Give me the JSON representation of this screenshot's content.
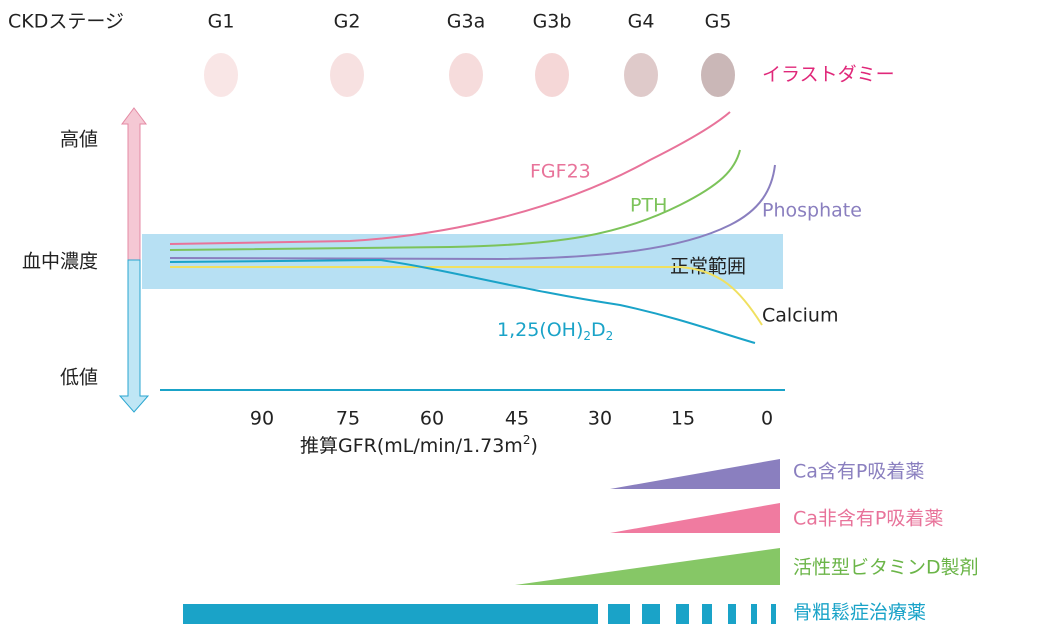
{
  "stage_header": {
    "label": "CKDステージ",
    "stages": [
      "G1",
      "G2",
      "G3a",
      "G3b",
      "G4",
      "G5"
    ]
  },
  "watermark": "イラストダミー",
  "y_labels": {
    "high": "高値",
    "mid": "血中濃度",
    "low": "低値"
  },
  "curves": {
    "fgf23": "FGF23",
    "pth": "PTH",
    "phosphate": "Phosphate",
    "calcium": "Calcium",
    "vitd": [
      "1,25(OH)",
      "2",
      "D",
      "2"
    ]
  },
  "normal_range": "正常範囲",
  "x_axis": {
    "ticks": [
      "90",
      "75",
      "60",
      "45",
      "30",
      "15",
      "0"
    ],
    "label": [
      "推算GFR(mL/min/1.73m",
      "2",
      ")"
    ]
  },
  "treatments": [
    "Ca含有P吸着薬",
    "Ca非含有P吸着薬",
    "活性型ビタミンD製剤",
    "骨粗鬆症治療薬"
  ]
}
